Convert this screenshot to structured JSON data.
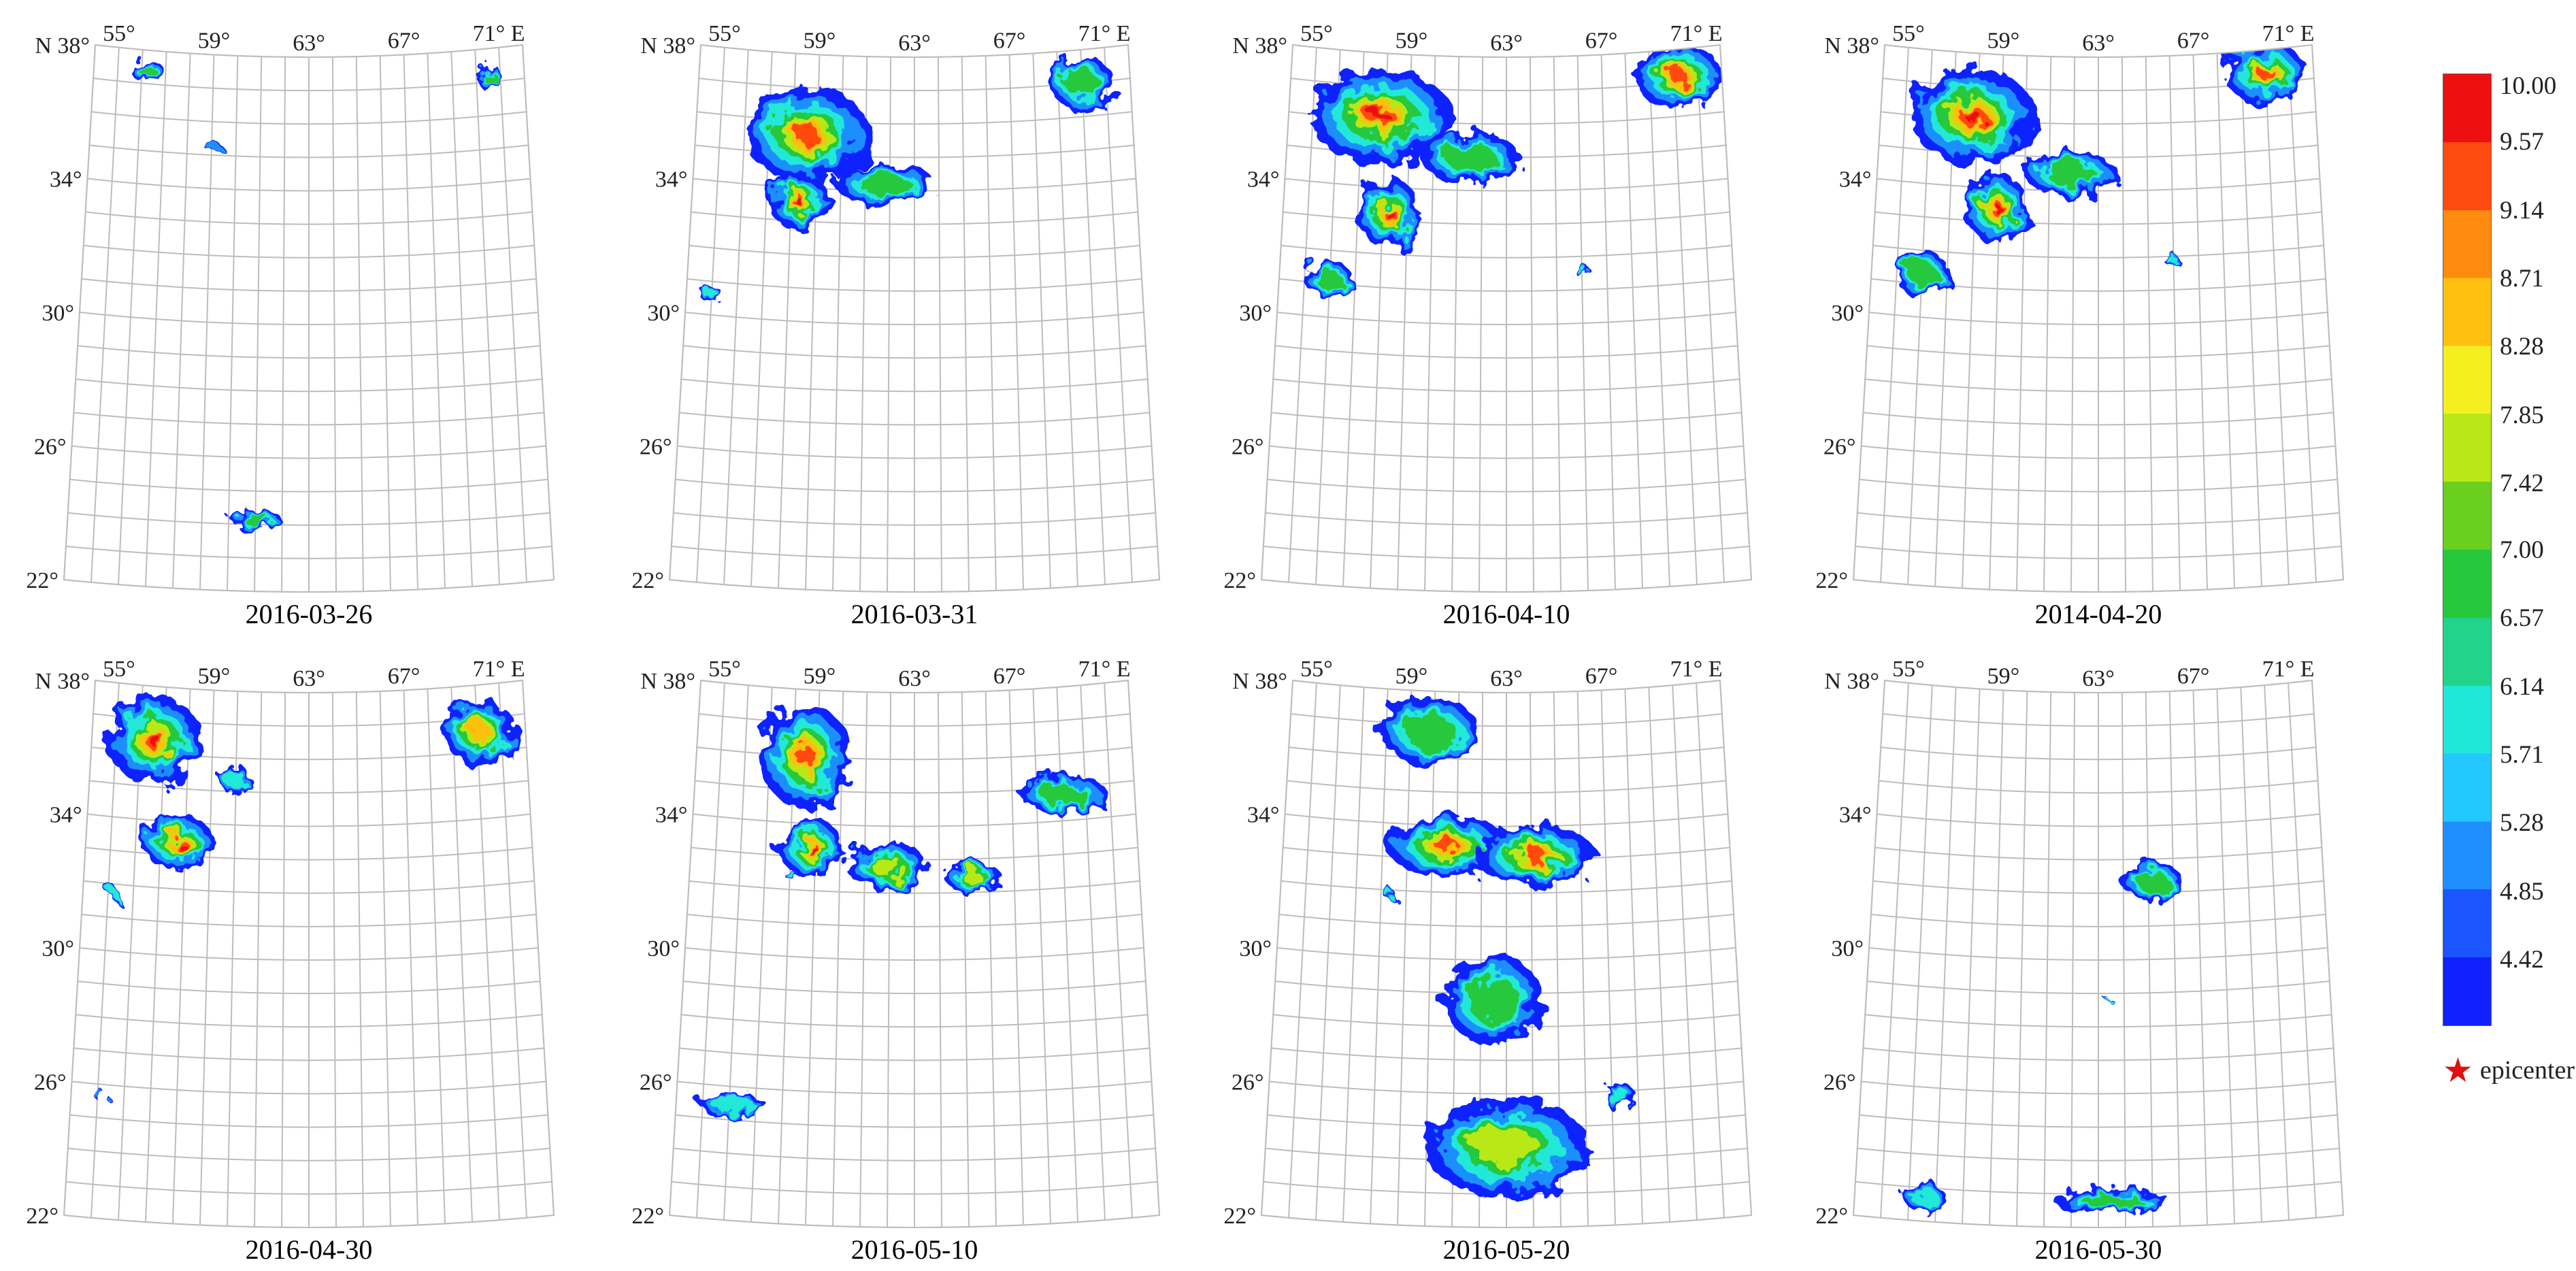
{
  "panels": [
    {
      "date": "2016-03-26",
      "blobs": [
        [
          56.2,
          37.4,
          0.6,
          0.4,
          0.45
        ],
        [
          70.6,
          37.1,
          0.3,
          0.6,
          0.45
        ],
        [
          59.0,
          35.3,
          0.3,
          0.2,
          0.25
        ],
        [
          61.1,
          24.1,
          0.9,
          0.4,
          0.45
        ]
      ]
    },
    {
      "date": "2016-03-31",
      "blobs": [
        [
          58.6,
          35.6,
          2.3,
          1.7,
          0.9
        ],
        [
          58.3,
          33.6,
          1.1,
          1.0,
          0.95
        ],
        [
          61.8,
          34.2,
          1.8,
          0.8,
          0.5
        ],
        [
          70.0,
          37.0,
          1.2,
          0.9,
          0.5
        ],
        [
          55.0,
          30.6,
          0.4,
          0.3,
          0.3
        ]
      ]
    },
    {
      "date": "2016-04-10",
      "blobs": [
        [
          57.8,
          36.1,
          2.6,
          1.7,
          1.0
        ],
        [
          58.3,
          33.2,
          1.1,
          1.3,
          1.0
        ],
        [
          56.0,
          31.1,
          0.9,
          0.6,
          0.45
        ],
        [
          61.5,
          35.0,
          1.8,
          0.9,
          0.55
        ],
        [
          70.2,
          37.2,
          1.6,
          1.2,
          0.9
        ],
        [
          66.1,
          31.5,
          0.2,
          0.3,
          0.3
        ]
      ]
    },
    {
      "date": "2014-04-20",
      "blobs": [
        [
          57.8,
          36.1,
          2.3,
          1.7,
          1.0
        ],
        [
          58.9,
          33.4,
          1.1,
          1.3,
          1.0
        ],
        [
          56.0,
          31.3,
          1.0,
          0.8,
          0.45
        ],
        [
          61.9,
          34.5,
          1.7,
          0.8,
          0.5
        ],
        [
          70.0,
          37.3,
          1.5,
          1.1,
          0.9
        ],
        [
          65.8,
          32.0,
          0.2,
          0.3,
          0.3
        ]
      ]
    },
    {
      "date": "2016-04-30",
      "blobs": [
        [
          56.6,
          36.4,
          1.7,
          1.6,
          1.0
        ],
        [
          57.7,
          33.4,
          1.3,
          1.0,
          0.95
        ],
        [
          70.1,
          36.6,
          1.3,
          1.2,
          0.85
        ],
        [
          59.9,
          35.4,
          0.5,
          0.6,
          0.4
        ],
        [
          55.3,
          31.7,
          0.2,
          0.2,
          0.3
        ],
        [
          55.2,
          25.6,
          0.2,
          0.2,
          0.25
        ]
      ]
    },
    {
      "date": "2016-05-10",
      "blobs": [
        [
          58.5,
          36.0,
          1.6,
          1.9,
          0.9
        ],
        [
          58.8,
          33.3,
          1.2,
          1.0,
          0.95
        ],
        [
          61.9,
          32.8,
          1.5,
          0.8,
          0.6
        ],
        [
          65.3,
          32.5,
          1.0,
          0.6,
          0.7
        ],
        [
          69.1,
          34.8,
          1.6,
          0.7,
          0.5
        ],
        [
          56.1,
          25.5,
          1.2,
          0.4,
          0.4
        ],
        [
          58.1,
          32.4,
          0.2,
          0.2,
          0.4
        ]
      ]
    },
    {
      "date": "2016-05-20",
      "blobs": [
        [
          59.8,
          36.8,
          1.8,
          1.2,
          0.55
        ],
        [
          60.6,
          33.4,
          2.2,
          1.1,
          0.9
        ],
        [
          64.2,
          33.1,
          2.2,
          1.1,
          0.9
        ],
        [
          62.5,
          28.8,
          1.8,
          1.6,
          0.45
        ],
        [
          63.0,
          24.4,
          3.0,
          1.8,
          0.6
        ],
        [
          58.3,
          31.9,
          0.2,
          0.2,
          0.4
        ],
        [
          67.3,
          25.8,
          0.6,
          0.5,
          0.3
        ]
      ]
    },
    {
      "date": "2016-05-30",
      "blobs": [
        [
          65.2,
          32.3,
          1.1,
          0.7,
          0.5
        ],
        [
          63.5,
          22.8,
          2.1,
          0.5,
          0.45
        ],
        [
          56.6,
          22.7,
          0.7,
          0.6,
          0.3
        ],
        [
          63.3,
          28.9,
          0.1,
          0.1,
          0.3
        ]
      ]
    }
  ],
  "axes": {
    "lon_labels": [
      "55°",
      "59°",
      "63°",
      "67°",
      "71° E"
    ],
    "lon_values": [
      55,
      59,
      63,
      67,
      71
    ],
    "lat_labels": [
      "N 38°",
      "34°",
      "30°",
      "26°",
      "22°"
    ],
    "lat_values": [
      38,
      34,
      30,
      26,
      22
    ],
    "lon_range": [
      54,
      72
    ],
    "lat_range": [
      22,
      38
    ]
  },
  "legend": {
    "ticks": [
      "10.00",
      "9.57",
      "9.14",
      "8.71",
      "8.28",
      "7.85",
      "7.42",
      "7.00",
      "6.57",
      "6.14",
      "5.71",
      "5.28",
      "4.85",
      "4.42"
    ],
    "range": [
      4.0,
      10.0
    ],
    "colors": [
      "#1020ff",
      "#1a55ff",
      "#1f8fff",
      "#22c8ff",
      "#20e8d8",
      "#22d48a",
      "#26c83c",
      "#6ad020",
      "#b8e818",
      "#f4f020",
      "#ffc010",
      "#ff8a10",
      "#ff4a10",
      "#ee1010"
    ]
  },
  "marker": {
    "symbol": "★",
    "label": "epicenter"
  }
}
